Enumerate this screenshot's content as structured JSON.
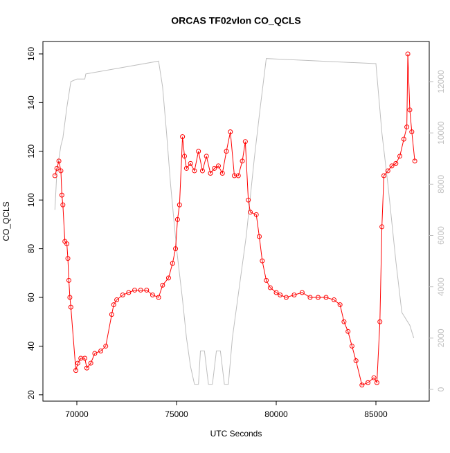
{
  "chart_data": {
    "type": "line",
    "title": "ORCAS TF02vlon CO_QCLS",
    "xlabel": "UTC Seconds",
    "ylabel": "CO_QCLS",
    "xlim": [
      68299,
      87674
    ],
    "xticks": [
      70000,
      75000,
      80000,
      85000
    ],
    "ylim": [
      17.4,
      165.1
    ],
    "yticks": [
      20,
      40,
      60,
      80,
      100,
      120,
      140,
      160
    ],
    "y2lim": [
      -458,
      13564
    ],
    "y2ticks": [
      0,
      2000,
      4000,
      6000,
      8000,
      10000,
      12000
    ],
    "series": [
      {
        "color": "#ff0000",
        "markers": true,
        "x": [
          68900,
          69000,
          69100,
          69200,
          69250,
          69300,
          69400,
          69500,
          69550,
          69600,
          69650,
          69700,
          69950,
          70050,
          70200,
          70400,
          70500,
          70700,
          70900,
          71200,
          71450,
          71750,
          71850,
          72000,
          72300,
          72600,
          72900,
          73200,
          73500,
          73800,
          74100,
          74300,
          74600,
          74800,
          74950,
          75050,
          75150,
          75300,
          75400,
          75500,
          75700,
          75900,
          76100,
          76300,
          76500,
          76700,
          76900,
          77100,
          77300,
          77500,
          77700,
          77900,
          78100,
          78300,
          78450,
          78600,
          78700,
          79000,
          79150,
          79300,
          79500,
          79700,
          80000,
          80200,
          80500,
          80900,
          81300,
          81700,
          82100,
          82500,
          82900,
          83200,
          83400,
          83600,
          83800,
          84000,
          84300,
          84600,
          84900,
          85050,
          85200,
          85300,
          85400,
          85600,
          85800,
          86000,
          86200,
          86400,
          86550,
          86600,
          86700,
          86800,
          86950
        ],
        "values": [
          110,
          113,
          116,
          112,
          102,
          98,
          83,
          82,
          76,
          67,
          60,
          56,
          30,
          33,
          35,
          35,
          31,
          33,
          37,
          38,
          40,
          53,
          57,
          59,
          61,
          62,
          63,
          63,
          63,
          61,
          60,
          65,
          68,
          74,
          80,
          92,
          98,
          126,
          118,
          113,
          115,
          112,
          120,
          112,
          118,
          111,
          113,
          114,
          111,
          120,
          128,
          110,
          110,
          116,
          124,
          100,
          95,
          94,
          85,
          75,
          67,
          64,
          62,
          61,
          60,
          61,
          62,
          60,
          60,
          60,
          59,
          57,
          50,
          46,
          40,
          34,
          24,
          25,
          27,
          25,
          50,
          89,
          110,
          112,
          114,
          115,
          118,
          125,
          130,
          160,
          137,
          128,
          116
        ]
      },
      {
        "color": "#bebebe",
        "axis": "y2",
        "markers": false,
        "x": [
          68900,
          69000,
          69200,
          69300,
          69500,
          69700,
          70000,
          70400,
          70450,
          74100,
          74300,
          74500,
          74700,
          75000,
          75300,
          75500,
          75700,
          75900,
          76100,
          76200,
          76400,
          76600,
          76800,
          77000,
          77200,
          77400,
          77600,
          77800,
          78500,
          78900,
          79200,
          79500,
          85000,
          85300,
          85600,
          86000,
          86300,
          86700,
          86900
        ],
        "values": [
          7000,
          8500,
          9500,
          9800,
          11000,
          12000,
          12100,
          12100,
          12300,
          12800,
          11800,
          10000,
          8000,
          5500,
          3500,
          2000,
          900,
          200,
          200,
          1500,
          1500,
          200,
          200,
          1500,
          1500,
          200,
          200,
          2000,
          6000,
          9000,
          11000,
          12900,
          12700,
          10000,
          8000,
          5000,
          3000,
          2500,
          2000
        ]
      }
    ]
  }
}
